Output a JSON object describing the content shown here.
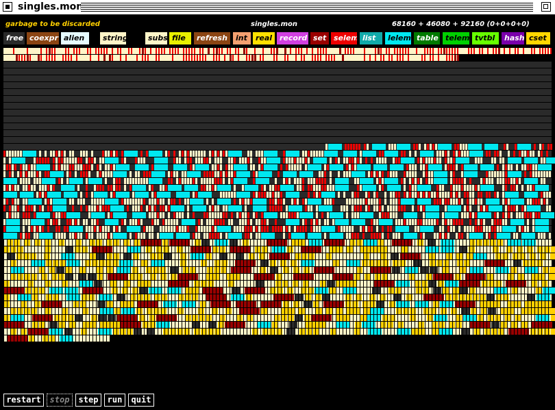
{
  "window": {
    "title": "singles.mon"
  },
  "header": {
    "garbage_note": "garbage to be discarded",
    "title": "singles.mon",
    "counts": "68160 + 46080 + 92160  (0+0+0+0)"
  },
  "legend": [
    {
      "label": "free",
      "bg": "#2a2a2a",
      "fg": "#ffffff"
    },
    {
      "label": "coexpr",
      "bg": "#8b4513",
      "fg": "#ffffff"
    },
    {
      "label": "alien",
      "bg": "#e6fbff",
      "fg": "#000000"
    },
    {
      "label": "string",
      "bg": "#fff5c8",
      "fg": "#000000"
    },
    {
      "label": "subs",
      "bg": "#fff5c8",
      "fg": "#000000"
    },
    {
      "label": "file",
      "bg": "#e8f000",
      "fg": "#000000"
    },
    {
      "label": "refresh",
      "bg": "#8b4513",
      "fg": "#ffffff"
    },
    {
      "label": "int",
      "bg": "#f4a070",
      "fg": "#000000"
    },
    {
      "label": "real",
      "bg": "#ffe000",
      "fg": "#000000"
    },
    {
      "label": "record",
      "bg": "#d040e0",
      "fg": "#ffffff"
    },
    {
      "label": "set",
      "bg": "#990000",
      "fg": "#ffffff"
    },
    {
      "label": "selem",
      "bg": "#ee0000",
      "fg": "#ffffff"
    },
    {
      "label": "list",
      "bg": "#11aaaa",
      "fg": "#ffffff"
    },
    {
      "label": "lelem",
      "bg": "#00e8f0",
      "fg": "#000000"
    },
    {
      "label": "table",
      "bg": "#007a00",
      "fg": "#ffffff"
    },
    {
      "label": "telem",
      "bg": "#00d000",
      "fg": "#000000"
    },
    {
      "label": "tvtbl",
      "bg": "#66ff00",
      "fg": "#000000"
    },
    {
      "label": "hash",
      "bg": "#7a00aa",
      "fg": "#ffffff"
    },
    {
      "label": "cset",
      "bg": "#ffd700",
      "fg": "#000000"
    }
  ],
  "heap_colors": {
    "free": "#2a2a2a",
    "string": "#fff5c8",
    "garbage": "#ffd000",
    "set": "#990000",
    "selem": "#ee0000",
    "lelem": "#00e8f0",
    "outline": "#000000"
  },
  "controls": {
    "restart": "restart",
    "stop": "stop",
    "step": "step",
    "run": "run",
    "quit": "quit"
  }
}
